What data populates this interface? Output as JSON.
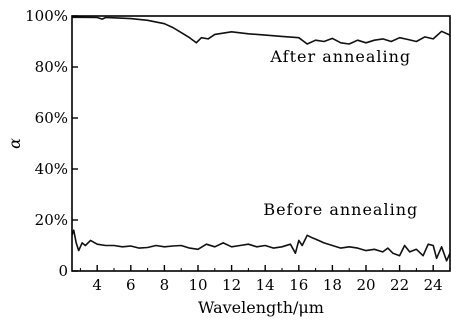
{
  "chart_data": {
    "type": "line",
    "xlabel": "Wavelength/μm",
    "ylabel": "α",
    "xlim": [
      2.5,
      25
    ],
    "ylim": [
      0,
      100
    ],
    "x_ticks": [
      4,
      6,
      8,
      10,
      12,
      14,
      16,
      18,
      20,
      22,
      24
    ],
    "y_ticks": [
      {
        "value": 0,
        "label": "0"
      },
      {
        "value": 20,
        "label": "20%"
      },
      {
        "value": 40,
        "label": "40%"
      },
      {
        "value": 60,
        "label": "60%"
      },
      {
        "value": 80,
        "label": "80%"
      },
      {
        "value": 100,
        "label": "100%"
      }
    ],
    "grid": false,
    "series": [
      {
        "name": "After annealing",
        "color": "#111111",
        "x": [
          2.5,
          3,
          4,
          4.3,
          4.5,
          5,
          6,
          7,
          8,
          8.5,
          9,
          9.5,
          9.9,
          10.2,
          10.6,
          11,
          12,
          13,
          14,
          15,
          16,
          16.5,
          17,
          17.5,
          18,
          18.5,
          19,
          19.5,
          20,
          20.5,
          21,
          21.5,
          22,
          22.5,
          23,
          23.5,
          24,
          24.5,
          25
        ],
        "y": [
          99.5,
          99.5,
          99.4,
          98.8,
          99.4,
          99.3,
          99.0,
          98.3,
          97.0,
          95.5,
          93.5,
          91.5,
          89.5,
          91.5,
          91.0,
          92.8,
          93.8,
          93.0,
          92.5,
          92.0,
          91.5,
          89.0,
          90.5,
          90.0,
          91.2,
          89.5,
          89.0,
          90.5,
          89.5,
          90.5,
          91.0,
          90.0,
          91.5,
          90.8,
          90.0,
          91.8,
          91.0,
          94.0,
          92.5
        ]
      },
      {
        "name": "Before annealing",
        "color": "#111111",
        "x": [
          2.5,
          2.6,
          2.75,
          2.9,
          3.1,
          3.3,
          3.6,
          4,
          4.5,
          5,
          5.5,
          6,
          6.5,
          7,
          7.5,
          8,
          8.5,
          9,
          9.5,
          10,
          10.5,
          11,
          11.5,
          12,
          12.5,
          13,
          13.5,
          14,
          14.5,
          15,
          15.5,
          15.8,
          16,
          16.2,
          16.5,
          16.8,
          17,
          17.5,
          18,
          18.5,
          19,
          19.5,
          20,
          20.5,
          21,
          21.3,
          21.6,
          22,
          22.3,
          22.6,
          23,
          23.4,
          23.7,
          24,
          24.2,
          24.5,
          24.8,
          25
        ],
        "y": [
          14,
          16,
          11,
          8,
          11,
          10,
          12,
          10.5,
          10,
          10,
          9.5,
          9.8,
          9,
          9.2,
          10,
          9.5,
          9.8,
          10,
          9,
          8.5,
          10.5,
          9.5,
          11,
          9.5,
          10,
          10.5,
          9.5,
          10,
          9,
          9.5,
          10.5,
          7,
          12,
          10,
          14,
          13,
          12.5,
          11,
          10,
          9,
          9.5,
          9,
          8,
          8.5,
          7.5,
          9,
          7,
          6,
          10,
          7.5,
          8.5,
          6,
          10.5,
          10,
          5,
          9.5,
          4,
          7
        ]
      }
    ],
    "annotations": [
      {
        "text": "After annealing",
        "x": 18.5,
        "y": 82
      },
      {
        "text": "Before annealing",
        "x": 18.5,
        "y": 22
      }
    ]
  }
}
